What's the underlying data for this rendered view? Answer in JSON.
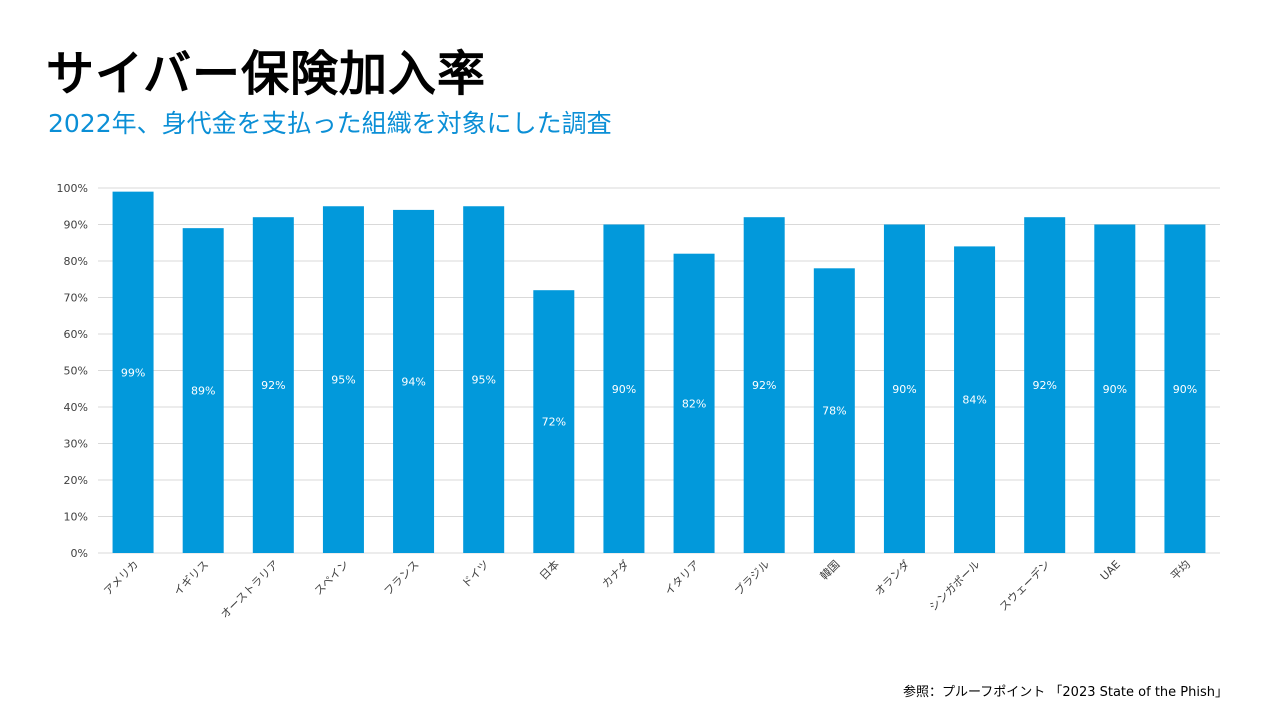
{
  "title": "サイバー保険加入率",
  "subtitle": "2022年、身代金を支払った組織を対象にした調査",
  "source": "参照：プルーフポイント 「2023 State of the Phish」",
  "colors": {
    "bar": "#0299DB",
    "subtitle": "#0B8FD6",
    "grid": "#D9D9D9",
    "label": "#FFFFFF"
  },
  "chart_data": {
    "type": "bar",
    "categories": [
      "アメリカ",
      "イギリス",
      "オーストラリア",
      "スペイン",
      "フランス",
      "ドイツ",
      "日本",
      "カナダ",
      "イタリア",
      "ブラジル",
      "韓国",
      "オランダ",
      "シンガポール",
      "スウェーデン",
      "UAE",
      "平均"
    ],
    "values": [
      99,
      89,
      92,
      95,
      94,
      95,
      72,
      90,
      82,
      92,
      78,
      90,
      84,
      92,
      90,
      90
    ],
    "value_labels": [
      "99%",
      "89%",
      "92%",
      "95%",
      "94%",
      "95%",
      "72%",
      "90%",
      "82%",
      "92%",
      "78%",
      "90%",
      "84%",
      "92%",
      "90%",
      "90%"
    ],
    "y_ticks": [
      "0%",
      "10%",
      "20%",
      "30%",
      "40%",
      "50%",
      "60%",
      "70%",
      "80%",
      "90%",
      "100%"
    ],
    "ylim": [
      0,
      100
    ],
    "grid": true,
    "legend": "none"
  }
}
